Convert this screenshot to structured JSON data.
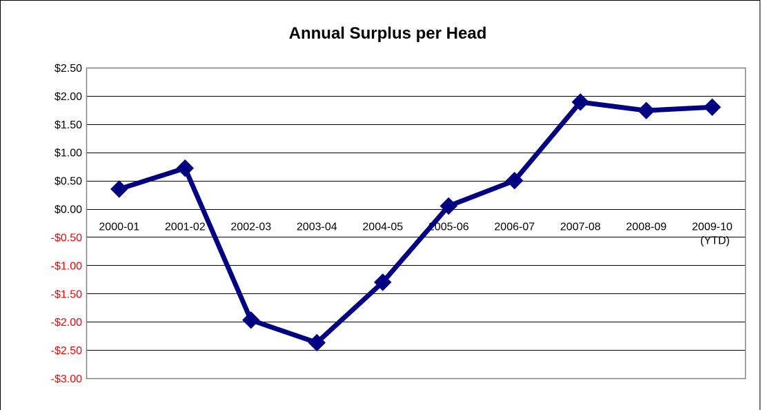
{
  "chart_data": {
    "type": "line",
    "title": "Annual Surplus per Head",
    "categories": [
      "2000-01",
      "2001-02",
      "2002-03",
      "2003-04",
      "2004-05",
      "2005-06",
      "2006-07",
      "2007-08",
      "2008-09",
      "2009-10 (YTD)"
    ],
    "category_lines": [
      [
        "2000-01"
      ],
      [
        "2001-02"
      ],
      [
        "2002-03"
      ],
      [
        "2003-04"
      ],
      [
        "2004-05"
      ],
      [
        "2005-06"
      ],
      [
        "2006-07"
      ],
      [
        "2007-08"
      ],
      [
        "2008-09"
      ],
      [
        "2009-10",
        "(YTD)"
      ]
    ],
    "series": [
      {
        "values": [
          0.35,
          0.72,
          -1.97,
          -2.37,
          -1.3,
          0.05,
          0.5,
          1.89,
          1.74,
          1.8
        ]
      }
    ],
    "ylim": [
      -3.0,
      2.5
    ],
    "y_ticks": [
      {
        "value": 2.5,
        "label": "$2.50"
      },
      {
        "value": 2.0,
        "label": "$2.00"
      },
      {
        "value": 1.5,
        "label": "$1.50"
      },
      {
        "value": 1.0,
        "label": "$1.00"
      },
      {
        "value": 0.5,
        "label": "$0.50"
      },
      {
        "value": 0.0,
        "label": "$0.00"
      },
      {
        "value": -0.5,
        "label": "-$0.50"
      },
      {
        "value": -1.0,
        "label": "-$1.00"
      },
      {
        "value": -1.5,
        "label": "-$1.50"
      },
      {
        "value": -2.0,
        "label": "-$2.00"
      },
      {
        "value": -2.5,
        "label": "-$2.50"
      },
      {
        "value": -3.0,
        "label": "-$3.00"
      }
    ],
    "xlabel": "",
    "ylabel": "",
    "grid": true,
    "legend": "none",
    "colors": {
      "line": "#000080",
      "negative_tick": "#ff0000",
      "positive_tick": "#000000",
      "grid": "#000000",
      "plot_border": "#808080"
    }
  }
}
